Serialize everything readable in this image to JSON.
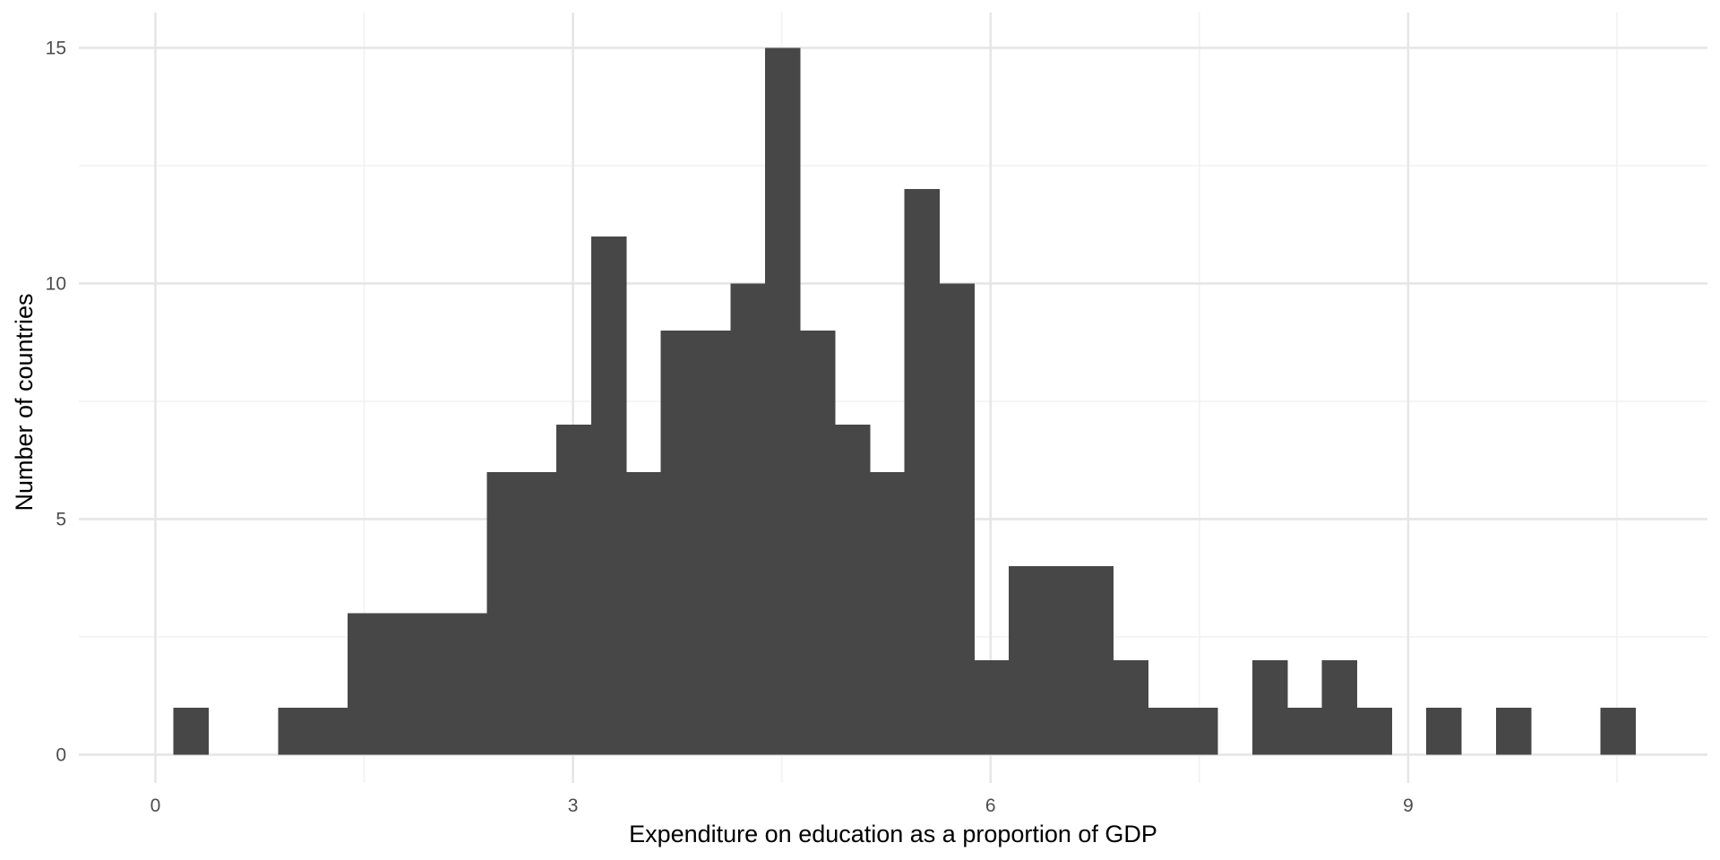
{
  "chart_data": {
    "type": "bar",
    "subtype": "histogram",
    "title": "",
    "xlabel": "Expenditure on education as a proportion of GDP",
    "ylabel": "Number of countries",
    "xlim": [
      -0.55,
      11.15
    ],
    "ylim": [
      -0.6,
      15.75
    ],
    "x_ticks": [
      0,
      3,
      6,
      9
    ],
    "x_tick_labels": [
      "0",
      "3",
      "6",
      "9"
    ],
    "x_minor_ticks": [
      1.5,
      4.5,
      7.5,
      10.5
    ],
    "y_ticks": [
      0,
      5,
      10,
      15
    ],
    "y_tick_labels": [
      "0",
      "5",
      "10",
      "15"
    ],
    "y_minor_ticks": [
      2.5,
      7.5,
      12.5
    ],
    "grid": true,
    "bin_start": 0.1305,
    "bin_width": 0.25,
    "values": [
      1,
      0,
      0,
      1,
      1,
      3,
      3,
      3,
      3,
      6,
      6,
      7,
      11,
      6,
      9,
      9,
      10,
      15,
      9,
      7,
      6,
      12,
      10,
      2,
      4,
      4,
      4,
      2,
      1,
      1,
      0,
      2,
      1,
      2,
      1,
      0,
      1,
      0,
      1,
      0,
      0,
      1
    ],
    "bar_color": "#474747"
  }
}
